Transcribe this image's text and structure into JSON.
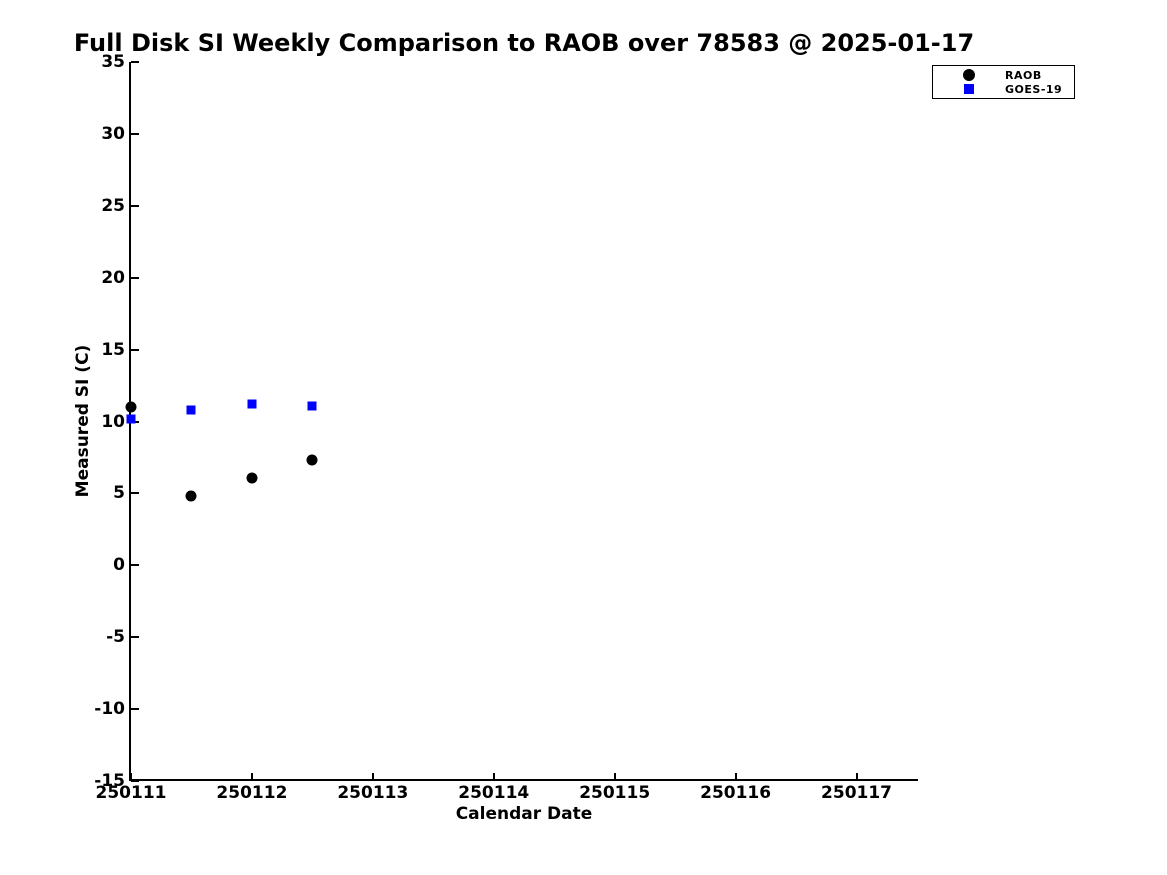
{
  "chart_data": {
    "type": "scatter",
    "title": "Full Disk SI Weekly Comparison to RAOB over 78583 @ 2025-01-17",
    "xlabel": "Calendar Date",
    "ylabel": "Measured SI (C)",
    "xlim": [
      250111,
      250117.5
    ],
    "ylim": [
      -15,
      35
    ],
    "xticks": [
      "250111",
      "250112",
      "250113",
      "250114",
      "250115",
      "250116",
      "250117"
    ],
    "xtick_values": [
      250111,
      250112,
      250113,
      250114,
      250115,
      250116,
      250117
    ],
    "yticks": [
      "35",
      "30",
      "25",
      "20",
      "15",
      "10",
      "5",
      "0",
      "-5",
      "-10",
      "-15"
    ],
    "ytick_values": [
      35,
      30,
      25,
      20,
      15,
      10,
      5,
      0,
      -5,
      -10,
      -15
    ],
    "grid": false,
    "tick_direction": "in",
    "legend_position": "top-right",
    "colors": {
      "foreground": "#000000",
      "background": "#ffffff",
      "raob": "#000000",
      "goes19": "#0000ff"
    },
    "series": [
      {
        "name": "RAOB",
        "marker": "circle",
        "color": "#000000",
        "x": [
          250111,
          250111.5,
          250112,
          250112.5
        ],
        "y": [
          11.0,
          4.8,
          6.1,
          7.3
        ]
      },
      {
        "name": "GOES-19",
        "marker": "square",
        "color": "#0000ff",
        "x": [
          250111,
          250111.5,
          250112,
          250112.5
        ],
        "y": [
          10.2,
          10.8,
          11.2,
          11.1
        ]
      }
    ]
  }
}
